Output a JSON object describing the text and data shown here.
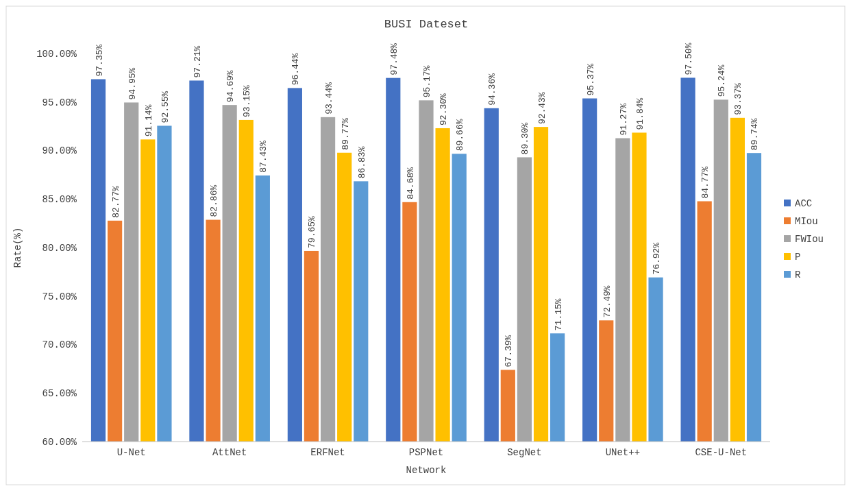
{
  "chart_data": {
    "type": "bar",
    "title": "BUSI Dateset",
    "xlabel": "Network",
    "ylabel": "Rate(%)",
    "categories": [
      "U-Net",
      "AttNet",
      "ERFNet",
      "PSPNet",
      "SegNet",
      "UNet++",
      "CSE-U-Net"
    ],
    "ylim": [
      60,
      100
    ],
    "yticks": [
      {
        "value": 60,
        "label": "60.00%"
      },
      {
        "value": 65,
        "label": "65.00%"
      },
      {
        "value": 70,
        "label": "70.00%"
      },
      {
        "value": 75,
        "label": "75.00%"
      },
      {
        "value": 80,
        "label": "80.00%"
      },
      {
        "value": 85,
        "label": "85.00%"
      },
      {
        "value": 90,
        "label": "90.00%"
      },
      {
        "value": 95,
        "label": "95.00%"
      },
      {
        "value": 100,
        "label": "100.00%"
      }
    ],
    "legend": "right",
    "series": [
      {
        "name": "ACC",
        "color": "#4472c4",
        "values": [
          97.35,
          97.21,
          96.44,
          97.48,
          94.36,
          95.37,
          97.5
        ],
        "value_labels": [
          "97.35%",
          "97.21%",
          "96.44%",
          "97.48%",
          "94.36%",
          "95.37%",
          "97.50%"
        ]
      },
      {
        "name": "MIou",
        "color": "#ed7d31",
        "values": [
          82.77,
          82.86,
          79.65,
          84.68,
          67.39,
          72.49,
          84.77
        ],
        "value_labels": [
          "82.77%",
          "82.86%",
          "79.65%",
          "84.68%",
          "67.39%",
          "72.49%",
          "84.77%"
        ]
      },
      {
        "name": "FWIou",
        "color": "#a5a5a5",
        "values": [
          94.95,
          94.69,
          93.44,
          95.17,
          89.3,
          91.27,
          95.24
        ],
        "value_labels": [
          "94.95%",
          "94.69%",
          "93.44%",
          "95.17%",
          "89.30%",
          "91.27%",
          "95.24%"
        ]
      },
      {
        "name": "P",
        "color": "#ffc000",
        "values": [
          91.14,
          93.15,
          89.77,
          92.3,
          92.43,
          91.84,
          93.37
        ],
        "value_labels": [
          "91.14%",
          "93.15%",
          "89.77%",
          "92.30%",
          "92.43%",
          "91.84%",
          "93.37%"
        ]
      },
      {
        "name": "R",
        "color": "#5b9bd5",
        "values": [
          92.55,
          87.43,
          86.83,
          89.66,
          71.15,
          76.92,
          89.74
        ],
        "value_labels": [
          "92.55%",
          "87.43%",
          "86.83%",
          "89.66%",
          "71.15%",
          "76.92%",
          "89.74%"
        ]
      }
    ]
  }
}
